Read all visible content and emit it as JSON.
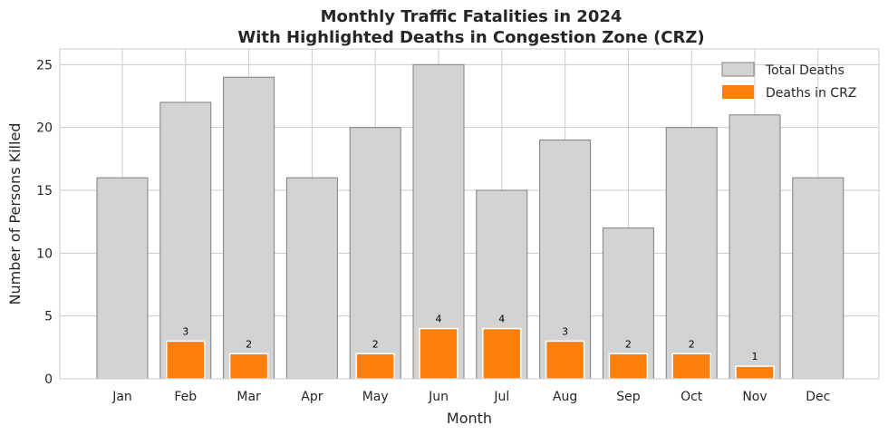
{
  "chart_data": {
    "type": "bar",
    "title": [
      "Monthly Traffic Fatalities in 2024",
      "With Highlighted Deaths in Congestion Zone (CRZ)"
    ],
    "xlabel": "Month",
    "ylabel": "Number of Persons Killed",
    "categories": [
      "Jan",
      "Feb",
      "Mar",
      "Apr",
      "May",
      "Jun",
      "Jul",
      "Aug",
      "Sep",
      "Oct",
      "Nov",
      "Dec"
    ],
    "ylim": [
      0,
      26.25
    ],
    "yticks": [
      0,
      5,
      10,
      15,
      20,
      25
    ],
    "grid": true,
    "legend_position": "top-right",
    "series": [
      {
        "name": "Total Deaths",
        "values": [
          16,
          22,
          24,
          16,
          20,
          25,
          15,
          19,
          12,
          20,
          21,
          16
        ],
        "color": "#d3d3d3",
        "edge": "#808080"
      },
      {
        "name": "Deaths in CRZ",
        "values": [
          0,
          3,
          2,
          0,
          2,
          4,
          4,
          3,
          2,
          2,
          1,
          0
        ],
        "color": "#ff7f0e",
        "edge": "#ffffff"
      }
    ],
    "data_labels": [
      "",
      "3",
      "2",
      "",
      "2",
      "4",
      "4",
      "3",
      "2",
      "2",
      "1",
      ""
    ]
  }
}
